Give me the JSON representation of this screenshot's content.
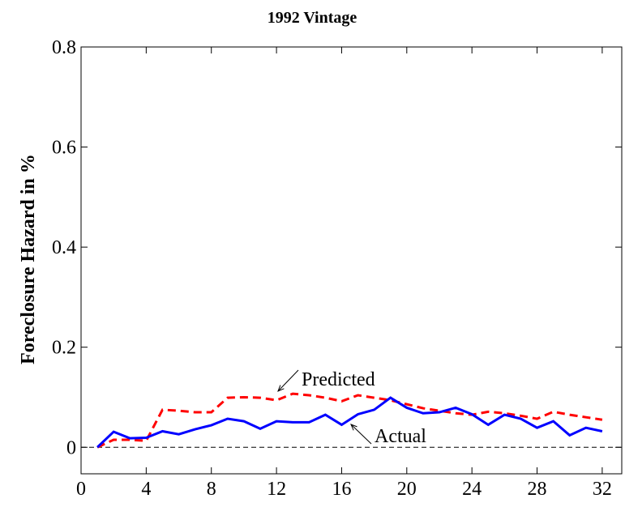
{
  "chart_data": {
    "type": "line",
    "title": "1992 Vintage",
    "y_label": "Foreclosure Hazard in %",
    "x": [
      1,
      2,
      3,
      4,
      5,
      6,
      7,
      8,
      9,
      10,
      11,
      12,
      13,
      14,
      15,
      16,
      17,
      18,
      19,
      20,
      21,
      22,
      23,
      24,
      25,
      26,
      27,
      28,
      29,
      30,
      31,
      32
    ],
    "series": [
      {
        "name": "Predicted",
        "color": "#ff0000",
        "dash": true,
        "values": [
          0,
          0.015,
          0.015,
          0.013,
          0.075,
          0.073,
          0.07,
          0.07,
          0.099,
          0.1,
          0.099,
          0.094,
          0.107,
          0.104,
          0.099,
          0.092,
          0.104,
          0.099,
          0.094,
          0.086,
          0.078,
          0.073,
          0.068,
          0.065,
          0.071,
          0.068,
          0.063,
          0.057,
          0.071,
          0.065,
          0.06,
          0.055
        ]
      },
      {
        "name": "Actual",
        "color": "#0000ff",
        "dash": false,
        "values": [
          0,
          0.031,
          0.018,
          0.019,
          0.032,
          0.026,
          0.036,
          0.044,
          0.057,
          0.052,
          0.037,
          0.052,
          0.05,
          0.05,
          0.065,
          0.045,
          0.066,
          0.075,
          0.099,
          0.079,
          0.068,
          0.07,
          0.079,
          0.066,
          0.045,
          0.065,
          0.057,
          0.039,
          0.052,
          0.024,
          0.039,
          0.032
        ]
      }
    ],
    "xlim": [
      0,
      33.2
    ],
    "xticks": [
      0,
      4,
      8,
      12,
      16,
      20,
      24,
      28,
      32
    ],
    "ylim": [
      -0.053,
      0.8
    ],
    "yticks": [
      0,
      0.2,
      0.4,
      0.6,
      0.8
    ],
    "zero_line": true
  }
}
